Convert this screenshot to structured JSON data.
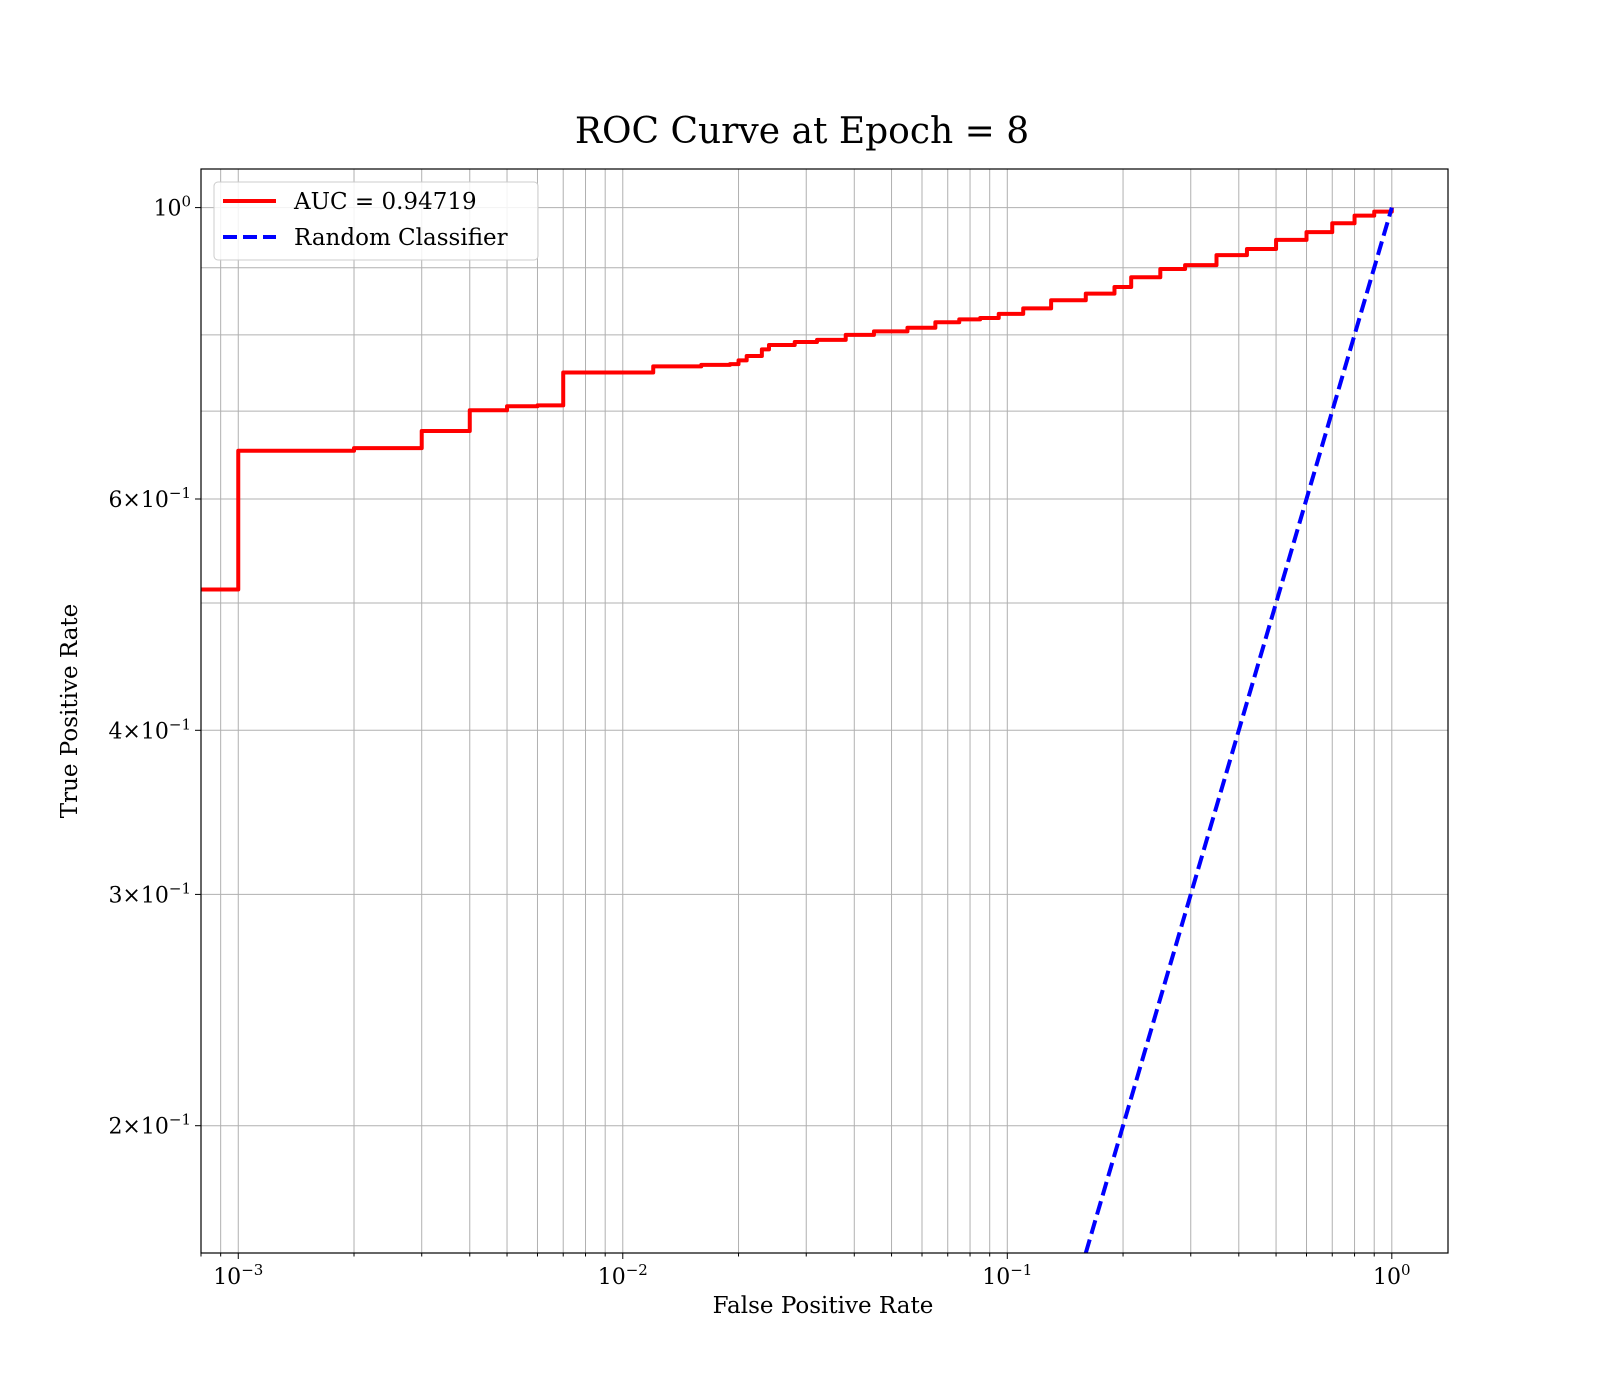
{
  "chart_data": {
    "type": "line",
    "title": "ROC Curve at Epoch = 8",
    "xlabel": "False Positive Rate",
    "ylabel": "True Positive Rate",
    "xscale": "log",
    "yscale": "log",
    "xlim": [
      0.0008,
      1.4
    ],
    "ylim": [
      0.16,
      1.07
    ],
    "grid": "both major and minor",
    "legend_position": "upper-left",
    "x_tick_labels": [
      {
        "value": 0.001,
        "base": "10",
        "exp": "−3"
      },
      {
        "value": 0.01,
        "base": "10",
        "exp": "−2"
      },
      {
        "value": 0.1,
        "base": "10",
        "exp": "−1"
      },
      {
        "value": 1,
        "base": "10",
        "exp": "0"
      }
    ],
    "y_tick_labels": [
      {
        "value": 1.0,
        "mant": "",
        "base": "10",
        "exp": "0"
      },
      {
        "value": 0.6,
        "mant": "6×",
        "base": "10",
        "exp": "−1"
      },
      {
        "value": 0.4,
        "mant": "4×",
        "base": "10",
        "exp": "−1"
      },
      {
        "value": 0.3,
        "mant": "3×",
        "base": "10",
        "exp": "−1"
      },
      {
        "value": 0.2,
        "mant": "2×",
        "base": "10",
        "exp": "−1"
      }
    ],
    "series": [
      {
        "name": "AUC = 0.94719",
        "color": "#ff0000",
        "style": "solid",
        "step": true,
        "points": [
          [
            0.0008,
            0.512
          ],
          [
            0.001,
            0.512
          ],
          [
            0.001,
            0.653
          ],
          [
            0.002,
            0.656
          ],
          [
            0.003,
            0.663
          ],
          [
            0.003,
            0.676
          ],
          [
            0.004,
            0.681
          ],
          [
            0.004,
            0.701
          ],
          [
            0.005,
            0.703
          ],
          [
            0.005,
            0.706
          ],
          [
            0.006,
            0.707
          ],
          [
            0.007,
            0.709
          ],
          [
            0.007,
            0.749
          ],
          [
            0.01,
            0.749
          ],
          [
            0.012,
            0.75
          ],
          [
            0.012,
            0.757
          ],
          [
            0.016,
            0.759
          ],
          [
            0.019,
            0.76
          ],
          [
            0.02,
            0.765
          ],
          [
            0.021,
            0.771
          ],
          [
            0.023,
            0.78
          ],
          [
            0.024,
            0.786
          ],
          [
            0.028,
            0.79
          ],
          [
            0.032,
            0.793
          ],
          [
            0.038,
            0.8
          ],
          [
            0.045,
            0.805
          ],
          [
            0.055,
            0.81
          ],
          [
            0.065,
            0.818
          ],
          [
            0.075,
            0.822
          ],
          [
            0.085,
            0.824
          ],
          [
            0.095,
            0.83
          ],
          [
            0.11,
            0.838
          ],
          [
            0.13,
            0.85
          ],
          [
            0.16,
            0.86
          ],
          [
            0.19,
            0.87
          ],
          [
            0.21,
            0.885
          ],
          [
            0.25,
            0.898
          ],
          [
            0.29,
            0.904
          ],
          [
            0.35,
            0.92
          ],
          [
            0.42,
            0.93
          ],
          [
            0.5,
            0.945
          ],
          [
            0.6,
            0.958
          ],
          [
            0.7,
            0.973
          ],
          [
            0.8,
            0.986
          ],
          [
            0.9,
            0.993
          ],
          [
            1.0,
            1.0
          ]
        ]
      },
      {
        "name": "Random Classifier",
        "color": "#0000ff",
        "style": "dashed",
        "step": false,
        "points": [
          [
            0.16,
            0.16
          ],
          [
            0.2,
            0.2
          ],
          [
            0.3,
            0.3
          ],
          [
            0.5,
            0.5
          ],
          [
            1.0,
            1.0
          ]
        ]
      }
    ]
  }
}
